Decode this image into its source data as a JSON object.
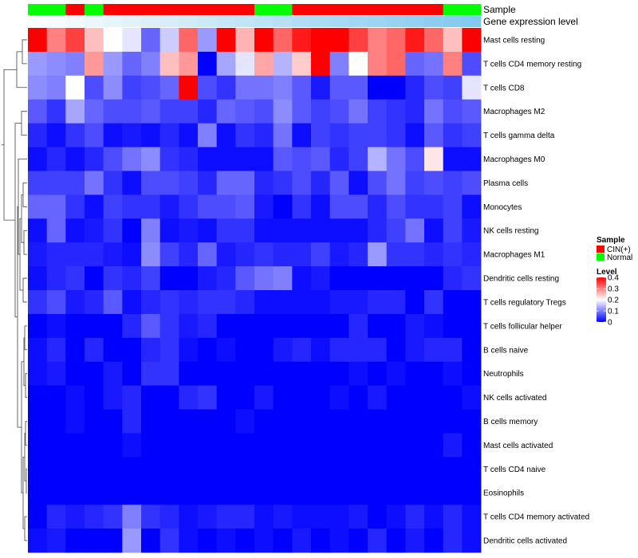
{
  "chart_data": {
    "type": "heatmap",
    "title": "",
    "annotation_rows": [
      {
        "name": "Sample",
        "type": "categorical",
        "values": [
          "Normal",
          "Normal",
          "CIN(+)",
          "Normal",
          "CIN(+)",
          "CIN(+)",
          "CIN(+)",
          "CIN(+)",
          "CIN(+)",
          "CIN(+)",
          "CIN(+)",
          "CIN(+)",
          "Normal",
          "Normal",
          "CIN(+)",
          "CIN(+)",
          "CIN(+)",
          "CIN(+)",
          "CIN(+)",
          "CIN(+)",
          "CIN(+)",
          "CIN(+)",
          "Normal",
          "Normal"
        ]
      },
      {
        "name": "Gene expression level",
        "type": "continuous",
        "values": [
          0.02,
          0.05,
          0.08,
          0.11,
          0.14,
          0.17,
          0.2,
          0.23,
          0.26,
          0.29,
          0.32,
          0.35,
          0.38,
          0.41,
          0.44,
          0.47,
          0.5,
          0.53,
          0.56,
          0.59,
          0.62,
          0.65,
          0.68,
          0.71
        ]
      }
    ],
    "rows": [
      "Mast cells resting",
      "T cells CD4 memory resting",
      "T cells CD8",
      "Macrophages M2",
      "T cells gamma delta",
      "Macrophages M0",
      "Plasma cells",
      "Monocytes",
      "NK cells resting",
      "Macrophages M1",
      "Dendritic cells resting",
      "T cells regulatory  Tregs",
      "T cells follicular helper",
      "B cells naive",
      "Neutrophils",
      "NK cells activated",
      "B cells memory",
      "Mast cells activated",
      "T cells CD4 naive",
      "Eosinophils",
      "T cells CD4 memory activated",
      "Dendritic cells activated"
    ],
    "values": [
      [
        0.4,
        0.3,
        0.35,
        0.25,
        0.2,
        0.18,
        0.08,
        0.16,
        0.32,
        0.12,
        0.4,
        0.26,
        0.4,
        0.32,
        0.38,
        0.4,
        0.4,
        0.35,
        0.3,
        0.32,
        0.38,
        0.32,
        0.25,
        0.4
      ],
      [
        0.12,
        0.11,
        0.1,
        0.28,
        0.12,
        0.08,
        0.1,
        0.25,
        0.28,
        0.0,
        0.13,
        0.18,
        0.27,
        0.14,
        0.24,
        0.4,
        0.1,
        0.2,
        0.3,
        0.32,
        0.08,
        0.09,
        0.3,
        0.06
      ],
      [
        0.11,
        0.1,
        0.2,
        0.06,
        0.11,
        0.05,
        0.06,
        0.08,
        0.4,
        0.06,
        0.04,
        0.09,
        0.09,
        0.1,
        0.07,
        0.02,
        0.07,
        0.07,
        0.0,
        0.0,
        0.03,
        0.06,
        0.05,
        0.18
      ],
      [
        0.07,
        0.04,
        0.13,
        0.08,
        0.06,
        0.06,
        0.07,
        0.05,
        0.05,
        0.03,
        0.08,
        0.07,
        0.06,
        0.11,
        0.07,
        0.05,
        0.06,
        0.09,
        0.05,
        0.04,
        0.03,
        0.09,
        0.06,
        0.07
      ],
      [
        0.03,
        0.01,
        0.04,
        0.06,
        0.01,
        0.02,
        0.01,
        0.03,
        0.01,
        0.1,
        0.01,
        0.04,
        0.03,
        0.09,
        0.01,
        0.05,
        0.04,
        0.05,
        0.05,
        0.04,
        0.01,
        0.07,
        0.04,
        0.05
      ],
      [
        0.01,
        0.03,
        0.01,
        0.03,
        0.06,
        0.09,
        0.11,
        0.04,
        0.03,
        0.01,
        0.01,
        0.01,
        0.01,
        0.07,
        0.06,
        0.07,
        0.03,
        0.05,
        0.14,
        0.09,
        0.06,
        0.22,
        0.01,
        0.01
      ],
      [
        0.05,
        0.05,
        0.05,
        0.09,
        0.04,
        0.01,
        0.06,
        0.06,
        0.05,
        0.03,
        0.08,
        0.08,
        0.03,
        0.04,
        0.06,
        0.03,
        0.07,
        0.01,
        0.06,
        0.09,
        0.05,
        0.06,
        0.05,
        0.06
      ],
      [
        0.08,
        0.08,
        0.04,
        0.01,
        0.05,
        0.04,
        0.04,
        0.02,
        0.04,
        0.06,
        0.06,
        0.07,
        0.02,
        0.0,
        0.04,
        0.01,
        0.06,
        0.06,
        0.03,
        0.06,
        0.04,
        0.04,
        0.05,
        0.01
      ],
      [
        0.01,
        0.08,
        0.01,
        0.02,
        0.04,
        0.0,
        0.1,
        0.01,
        0.02,
        0.01,
        0.04,
        0.04,
        0.01,
        0.01,
        0.01,
        0.01,
        0.01,
        0.01,
        0.03,
        0.05,
        0.09,
        0.01,
        0.05,
        0.02
      ],
      [
        0.02,
        0.03,
        0.03,
        0.03,
        0.02,
        0.01,
        0.11,
        0.05,
        0.03,
        0.08,
        0.02,
        0.03,
        0.04,
        0.03,
        0.03,
        0.05,
        0.02,
        0.03,
        0.12,
        0.04,
        0.04,
        0.03,
        0.04,
        0.03
      ],
      [
        0.01,
        0.03,
        0.04,
        0.0,
        0.04,
        0.03,
        0.05,
        0.0,
        0.0,
        0.02,
        0.03,
        0.07,
        0.09,
        0.1,
        0.01,
        0.02,
        0.0,
        0.0,
        0.0,
        0.0,
        0.0,
        0.0,
        0.03,
        0.04
      ],
      [
        0.04,
        0.06,
        0.02,
        0.03,
        0.07,
        0.01,
        0.03,
        0.04,
        0.03,
        0.04,
        0.04,
        0.03,
        0.01,
        0.01,
        0.01,
        0.01,
        0.02,
        0.02,
        0.03,
        0.03,
        0.0,
        0.04,
        0.0,
        0.0
      ],
      [
        0.0,
        0.01,
        0.0,
        0.0,
        0.0,
        0.03,
        0.07,
        0.04,
        0.02,
        0.03,
        0.0,
        0.0,
        0.0,
        0.0,
        0.0,
        0.0,
        0.0,
        0.03,
        0.0,
        0.0,
        0.02,
        0.01,
        0.0,
        0.0
      ],
      [
        0.01,
        0.03,
        0.0,
        0.03,
        0.0,
        0.0,
        0.03,
        0.04,
        0.01,
        0.0,
        0.01,
        0.0,
        0.0,
        0.02,
        0.03,
        0.01,
        0.03,
        0.03,
        0.03,
        0.0,
        0.02,
        0.03,
        0.03,
        0.0
      ],
      [
        0.01,
        0.02,
        0.0,
        0.0,
        0.02,
        0.0,
        0.04,
        0.04,
        0.0,
        0.0,
        0.0,
        0.0,
        0.0,
        0.0,
        0.0,
        0.0,
        0.0,
        0.01,
        0.0,
        0.01,
        0.0,
        0.0,
        0.01,
        0.0
      ],
      [
        0.0,
        0.0,
        0.01,
        0.0,
        0.02,
        0.03,
        0.0,
        0.0,
        0.03,
        0.04,
        0.0,
        0.0,
        0.02,
        0.0,
        0.0,
        0.0,
        0.01,
        0.0,
        0.02,
        0.0,
        0.0,
        0.0,
        0.0,
        0.01
      ],
      [
        0.0,
        0.0,
        0.01,
        0.0,
        0.0,
        0.03,
        0.0,
        0.0,
        0.0,
        0.0,
        0.0,
        0.01,
        0.0,
        0.0,
        0.0,
        0.0,
        0.0,
        0.0,
        0.0,
        0.0,
        0.0,
        0.0,
        0.0,
        0.0
      ],
      [
        0.0,
        0.0,
        0.0,
        0.0,
        0.0,
        0.01,
        0.0,
        0.0,
        0.0,
        0.0,
        0.0,
        0.0,
        0.0,
        0.0,
        0.0,
        0.0,
        0.0,
        0.0,
        0.0,
        0.0,
        0.0,
        0.0,
        0.02,
        0.0
      ],
      [
        0.0,
        0.0,
        0.0,
        0.0,
        0.0,
        0.0,
        0.0,
        0.0,
        0.0,
        0.0,
        0.0,
        0.0,
        0.0,
        0.0,
        0.0,
        0.0,
        0.0,
        0.0,
        0.0,
        0.0,
        0.0,
        0.0,
        0.0,
        0.0
      ],
      [
        0.0,
        0.0,
        0.0,
        0.0,
        0.0,
        0.0,
        0.0,
        0.0,
        0.0,
        0.0,
        0.0,
        0.0,
        0.0,
        0.0,
        0.0,
        0.0,
        0.0,
        0.0,
        0.0,
        0.0,
        0.0,
        0.0,
        0.0,
        0.0
      ],
      [
        0.0,
        0.03,
        0.02,
        0.03,
        0.04,
        0.1,
        0.04,
        0.03,
        0.01,
        0.02,
        0.03,
        0.03,
        0.01,
        0.02,
        0.01,
        0.01,
        0.01,
        0.02,
        0.0,
        0.01,
        0.03,
        0.01,
        0.03,
        0.01
      ],
      [
        0.01,
        0.02,
        0.0,
        0.0,
        0.0,
        0.12,
        0.0,
        0.04,
        0.01,
        0.0,
        0.01,
        0.0,
        0.01,
        0.0,
        0.02,
        0.0,
        0.01,
        0.0,
        0.03,
        0.0,
        0.02,
        0.0,
        0.03,
        0.01
      ]
    ],
    "color_scale": {
      "low": "#0000FF",
      "mid": "#FFFFFF",
      "high": "#FF0000",
      "min": 0,
      "mid_value": 0.2,
      "max": 0.4
    },
    "expression_scale": {
      "low": "#FFFFFF",
      "high": "#4FB4E8"
    },
    "legend": {
      "sample_title": "Sample",
      "sample_items": [
        {
          "label": "CIN(+)",
          "color": "#FF0000"
        },
        {
          "label": "Normal",
          "color": "#00FF00"
        }
      ],
      "level_title": "Level",
      "level_ticks": [
        {
          "value": 0.4,
          "label": "0.4"
        },
        {
          "value": 0.3,
          "label": "0.3"
        },
        {
          "value": 0.2,
          "label": "0.2"
        },
        {
          "value": 0.1,
          "label": "0.1"
        },
        {
          "value": 0,
          "label": "0"
        }
      ],
      "position": "right"
    }
  }
}
